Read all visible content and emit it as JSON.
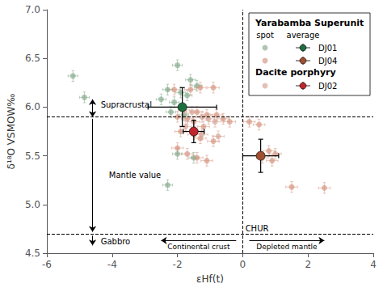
{
  "chart_data": {
    "type": "scatter",
    "xlabel": "εHf(t)",
    "ylabel": "δ¹⁸O VSMOW‰",
    "xlim": [
      -6,
      4
    ],
    "ylim": [
      4.5,
      7.0
    ],
    "xticks": [
      -6,
      -4,
      -2,
      0,
      2,
      4
    ],
    "yticks": [
      4.5,
      {
        "value": 5.0,
        "label": "5.0"
      },
      5.5,
      {
        "value": 6.0,
        "label": "6.0"
      },
      6.5,
      {
        "value": 7.0,
        "label": "7.0"
      }
    ],
    "grid": false,
    "legend": "upper right",
    "legend_columns": [
      "spot",
      "average"
    ],
    "series": [
      {
        "name": "DJ01",
        "group": "Yarabamba Superunit",
        "color": "#82a98a",
        "values": [
          [
            -5.2,
            6.32
          ],
          [
            -4.85,
            6.1
          ],
          [
            -2.0,
            6.43
          ],
          [
            -1.6,
            6.28
          ],
          [
            -1.4,
            6.22
          ],
          [
            -2.3,
            6.18
          ],
          [
            -1.9,
            6.15
          ],
          [
            -1.7,
            6.12
          ],
          [
            -2.5,
            6.08
          ],
          [
            -2.1,
            6.05
          ],
          [
            -2.2,
            5.95
          ],
          [
            -1.8,
            5.92
          ],
          [
            -2.0,
            5.52
          ],
          [
            -1.5,
            5.48
          ],
          [
            -2.3,
            5.2
          ]
        ],
        "xerr": 0.15,
        "yerr": 0.055,
        "average": {
          "color": "#1e6e40",
          "values": [
            [
              -1.85,
              6.0
            ]
          ],
          "xerr": 1.05,
          "yerr": 0.2
        }
      },
      {
        "name": "DJ04",
        "group": "Yarabamba Superunit",
        "color": "#d4927c",
        "values": [
          [
            -2.1,
            6.18
          ],
          [
            -1.6,
            6.18
          ],
          [
            -1.3,
            6.2
          ],
          [
            -0.9,
            6.2
          ],
          [
            -1.8,
            5.97
          ],
          [
            -1.4,
            5.95
          ],
          [
            -1.1,
            5.92
          ],
          [
            -0.8,
            5.92
          ],
          [
            -2.0,
            5.9
          ],
          [
            -1.7,
            5.88
          ],
          [
            -1.5,
            5.85
          ],
          [
            -1.2,
            5.8
          ],
          [
            -1.9,
            5.75
          ],
          [
            -1.5,
            5.72
          ],
          [
            -1.3,
            5.68
          ],
          [
            -0.9,
            5.65
          ],
          [
            -2.0,
            5.58
          ],
          [
            -1.7,
            5.52
          ],
          [
            -1.4,
            5.48
          ],
          [
            -1.1,
            5.45
          ],
          [
            -0.6,
            5.88
          ],
          [
            -0.4,
            5.85
          ],
          [
            0.2,
            5.85
          ],
          [
            0.5,
            5.82
          ],
          [
            0.8,
            5.55
          ],
          [
            1.0,
            5.52
          ],
          [
            0.6,
            5.48
          ],
          [
            0.9,
            5.45
          ],
          [
            1.5,
            5.18
          ],
          [
            2.5,
            5.17
          ]
        ],
        "xerr": 0.18,
        "yerr": 0.055,
        "average": {
          "color": "#a05030",
          "values": [
            [
              0.55,
              5.5
            ]
          ],
          "xerr": 0.55,
          "yerr": 0.17
        }
      },
      {
        "name": "DJ02",
        "group": "Dacite porphyry",
        "color": "#d4a090",
        "values": [
          [
            -1.55,
            5.95
          ],
          [
            -1.25,
            5.9
          ],
          [
            -1.05,
            5.88
          ],
          [
            -0.85,
            5.85
          ],
          [
            -1.75,
            5.8
          ],
          [
            -1.45,
            5.75
          ],
          [
            -1.25,
            5.72
          ],
          [
            -0.75,
            5.7
          ]
        ],
        "xerr": 0.18,
        "yerr": 0.055,
        "average": {
          "color": "#c0272d",
          "values": [
            [
              -1.5,
              5.75
            ]
          ],
          "xerr": 0.32,
          "yerr": 0.115
        }
      }
    ],
    "hlines": [
      5.9,
      4.7
    ],
    "vlines": [
      0.0
    ],
    "arrows": [
      {
        "from": [
          -4.6,
          5.91
        ],
        "to": [
          -4.6,
          6.08
        ]
      },
      {
        "from": [
          -4.6,
          6.06
        ],
        "to": [
          -4.6,
          5.9
        ]
      },
      {
        "from": [
          -4.6,
          5.88
        ],
        "to": [
          -4.6,
          4.72
        ]
      },
      {
        "from": [
          -4.6,
          4.68
        ],
        "to": [
          -4.6,
          4.58
        ]
      },
      {
        "from": [
          -0.2,
          4.63
        ],
        "to": [
          -2.5,
          4.63
        ],
        "label": "Continental crust"
      },
      {
        "from": [
          0.2,
          4.63
        ],
        "to": [
          2.5,
          4.63
        ],
        "label": "Depleted mantle"
      }
    ],
    "annotations": [
      {
        "text": "Supracrustal",
        "x": -4.35,
        "y": 6.02
      },
      {
        "text": "Mantle value",
        "x": -4.1,
        "y": 5.3
      },
      {
        "text": "Gabbro",
        "x": -4.35,
        "y": 4.62
      },
      {
        "text": "CHUR",
        "x": 0.08,
        "y": 4.75
      }
    ]
  }
}
